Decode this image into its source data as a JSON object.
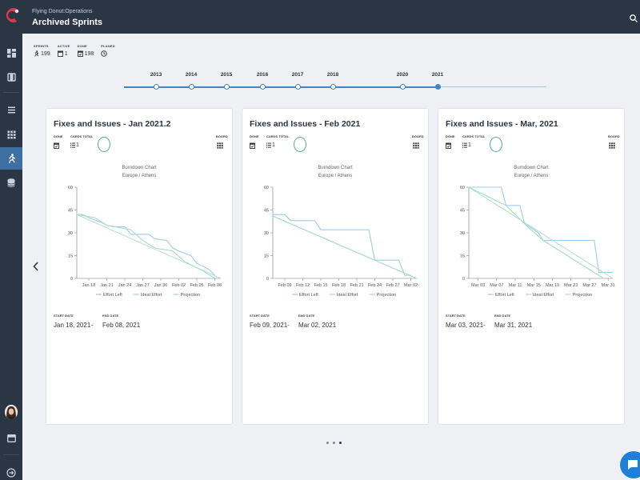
{
  "app": {
    "subtitle": "Flying Donut:Operations",
    "title": "Archived Sprints"
  },
  "colors": {
    "topbar": "#2b3645",
    "accent": "#3f86c6",
    "effort_left": "#9ccbe6",
    "ideal_effort": "#a6dcc4",
    "ring": "#5aab8d"
  },
  "sidebar": {
    "items": [
      {
        "name": "dashboard",
        "icon": "dashboard-icon"
      },
      {
        "name": "repository",
        "icon": "box-icon"
      },
      {
        "name": "list",
        "icon": "list-icon"
      },
      {
        "name": "board",
        "icon": "grid-icon"
      },
      {
        "name": "sprints",
        "icon": "runner-icon",
        "active": true
      },
      {
        "name": "archive",
        "icon": "database-icon"
      }
    ],
    "bottom": [
      "avatar",
      "inbox-icon",
      "logout-icon"
    ]
  },
  "stats": {
    "sprints": {
      "label": "SPRINTS",
      "value": "199"
    },
    "active": {
      "label": "ACTIVE",
      "value": "1"
    },
    "done": {
      "label": "DONE",
      "value": "198"
    },
    "planed": {
      "label": "PLANED",
      "value": ""
    }
  },
  "timeline": {
    "years": [
      "2013",
      "2014",
      "2015",
      "2016",
      "2017",
      "2018",
      "2020",
      "2021"
    ],
    "current": "2021"
  },
  "legend": [
    "Effort Left",
    "Ideal Effort",
    "Projection"
  ],
  "cards": [
    {
      "title": "Fixes and Issues - Jan 2021.2",
      "done_label": "DONE",
      "cards_label": "CARDS TOTAL",
      "cards_total": "1",
      "board_label": "BOARD",
      "chart_title": "Burndown Chart",
      "chart_subtitle": "Europe / Athens",
      "start_label": "START DATE",
      "start_date": "Jan 18, 2021",
      "end_label": "END DATE",
      "end_date": "Feb 08, 2021"
    },
    {
      "title": "Fixes and Issues - Feb 2021",
      "done_label": "DONE",
      "cards_label": "CARDS TOTAL",
      "cards_total": "1",
      "board_label": "BOARD",
      "chart_title": "Burndown Chart",
      "chart_subtitle": "Europe / Athens",
      "start_label": "START DATE",
      "start_date": "Feb 09, 2021",
      "end_label": "END DATE",
      "end_date": "Mar 02, 2021"
    },
    {
      "title": "Fixes and Issues - Mar, 2021",
      "done_label": "DONE",
      "cards_label": "CARDS TOTAL",
      "cards_total": "1",
      "board_label": "BOARD",
      "chart_title": "Burndown Chart",
      "chart_subtitle": "Europe / Athens",
      "start_label": "START DATE",
      "start_date": "Mar 03, 2021",
      "end_label": "END DATE",
      "end_date": "Mar 31, 2021"
    }
  ],
  "pager": {
    "pages": 3,
    "current": 3
  },
  "chart_data": [
    {
      "type": "line",
      "title": "Burndown Chart",
      "subtitle": "Europe / Athens",
      "ylim": [
        0,
        60
      ],
      "yticks": [
        0,
        15,
        30,
        45,
        60
      ],
      "xlim": [
        "2021-01-16",
        "2021-02-09"
      ],
      "xticks": [
        "Jan 18",
        "Jan 21",
        "Jan 24",
        "Jan 27",
        "Jan 30",
        "Feb 02",
        "Feb 05",
        "Feb 08"
      ],
      "xtick_dates": [
        "2021-01-18",
        "2021-01-21",
        "2021-01-24",
        "2021-01-27",
        "2021-01-30",
        "2021-02-02",
        "2021-02-05",
        "2021-02-08"
      ],
      "series": [
        {
          "name": "Effort Left",
          "x": [
            "2021-01-16",
            "2021-01-17",
            "2021-01-18",
            "2021-01-20",
            "2021-01-21",
            "2021-01-22",
            "2021-01-24",
            "2021-01-25",
            "2021-01-28",
            "2021-01-29",
            "2021-01-31",
            "2021-02-01",
            "2021-02-02",
            "2021-02-04",
            "2021-02-05",
            "2021-02-07",
            "2021-02-08"
          ],
          "y": [
            42,
            42,
            40,
            37,
            35,
            34,
            34,
            29,
            29,
            26,
            25,
            20,
            18,
            15,
            10,
            6,
            2
          ]
        },
        {
          "name": "Ideal Effort",
          "x": [
            "2021-01-16",
            "2021-01-19",
            "2021-01-21",
            "2021-01-25",
            "2021-01-27",
            "2021-01-29",
            "2021-02-01",
            "2021-02-03",
            "2021-02-06",
            "2021-02-08"
          ],
          "y": [
            42,
            40,
            35,
            32,
            25,
            20,
            18,
            11,
            5,
            0
          ]
        },
        {
          "name": "Projection",
          "x": [
            "2021-01-16",
            "2021-02-09"
          ],
          "y": [
            42,
            0
          ]
        }
      ]
    },
    {
      "type": "line",
      "title": "Burndown Chart",
      "subtitle": "Europe / Athens",
      "ylim": [
        0,
        60
      ],
      "yticks": [
        0,
        15,
        30,
        45,
        60
      ],
      "xlim": [
        "2021-02-07",
        "2021-03-03"
      ],
      "xticks": [
        "Feb 09",
        "Feb 12",
        "Feb 15",
        "Feb 18",
        "Feb 21",
        "Feb 24",
        "Feb 27",
        "Mar 02"
      ],
      "xtick_dates": [
        "2021-02-09",
        "2021-02-12",
        "2021-02-15",
        "2021-02-18",
        "2021-02-21",
        "2021-02-24",
        "2021-02-27",
        "2021-03-02"
      ],
      "series": [
        {
          "name": "Effort Left",
          "x": [
            "2021-02-07",
            "2021-02-09",
            "2021-02-10",
            "2021-02-14",
            "2021-02-15",
            "2021-02-23",
            "2021-02-24",
            "2021-02-28",
            "2021-03-01",
            "2021-03-02"
          ],
          "y": [
            42,
            42,
            38,
            38,
            32,
            32,
            12,
            12,
            2,
            2
          ]
        },
        {
          "name": "Ideal Effort",
          "x": [
            "2021-02-07",
            "2021-03-03"
          ],
          "y": [
            41,
            0
          ]
        },
        {
          "name": "Projection",
          "x": [
            "2021-02-07",
            "2021-03-03"
          ],
          "y": [
            41,
            0
          ]
        }
      ]
    },
    {
      "type": "line",
      "title": "Burndown Chart",
      "subtitle": "Europe / Athens",
      "ylim": [
        0,
        60
      ],
      "yticks": [
        0,
        15,
        30,
        45,
        60
      ],
      "xlim": [
        "2021-03-01",
        "2021-04-01"
      ],
      "xticks": [
        "Mar 03",
        "Mar 07",
        "Mar 11",
        "Mar 15",
        "Mar 19",
        "Mar 23",
        "Mar 27",
        "Mar 31"
      ],
      "xtick_dates": [
        "2021-03-03",
        "2021-03-07",
        "2021-03-11",
        "2021-03-15",
        "2021-03-19",
        "2021-03-23",
        "2021-03-27",
        "2021-03-31"
      ],
      "series": [
        {
          "name": "Effort Left",
          "x": [
            "2021-03-01",
            "2021-03-08",
            "2021-03-09",
            "2021-03-12",
            "2021-03-13",
            "2021-03-16",
            "2021-03-17",
            "2021-03-28",
            "2021-03-29",
            "2021-04-01"
          ],
          "y": [
            60,
            60,
            48,
            48,
            36,
            30,
            25,
            25,
            4,
            4
          ]
        },
        {
          "name": "Ideal Effort",
          "x": [
            "2021-03-01",
            "2021-03-09",
            "2021-03-11",
            "2021-03-14",
            "2021-03-17",
            "2021-03-30"
          ],
          "y": [
            60,
            48,
            42,
            33,
            25,
            0
          ]
        },
        {
          "name": "Projection",
          "x": [
            "2021-03-01",
            "2021-04-01"
          ],
          "y": [
            60,
            0
          ]
        }
      ]
    }
  ]
}
